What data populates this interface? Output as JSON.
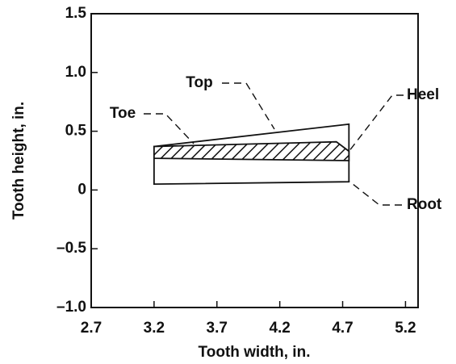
{
  "chart_data": {
    "type": "polygon",
    "xlabel": "Tooth width, in.",
    "ylabel": "Tooth height, in.",
    "xlim": [
      2.7,
      5.3
    ],
    "ylim": [
      -1.0,
      1.5
    ],
    "xticks": [
      2.7,
      3.2,
      3.7,
      4.2,
      4.7,
      5.2
    ],
    "yticks": [
      {
        "value": 1.5,
        "label": "1.5"
      },
      {
        "value": 1.0,
        "label": "1.0"
      },
      0.5,
      0,
      {
        "value": -0.5,
        "label": "–0.5"
      },
      {
        "value": -1.0,
        "label": "–1.0"
      }
    ],
    "shapes": [
      {
        "x": [
          3.2,
          4.75,
          4.75,
          3.2
        ],
        "y": [
          0.37,
          0.56,
          0.07,
          0.05
        ],
        "fill": "none"
      },
      {
        "x": [
          3.2,
          4.65,
          4.75,
          4.75,
          3.2
        ],
        "y": [
          0.37,
          0.41,
          0.33,
          0.25,
          0.27
        ],
        "fill": "hatch"
      }
    ],
    "annotations": [
      "Toe",
      "Top",
      "Heel",
      "Root"
    ]
  }
}
